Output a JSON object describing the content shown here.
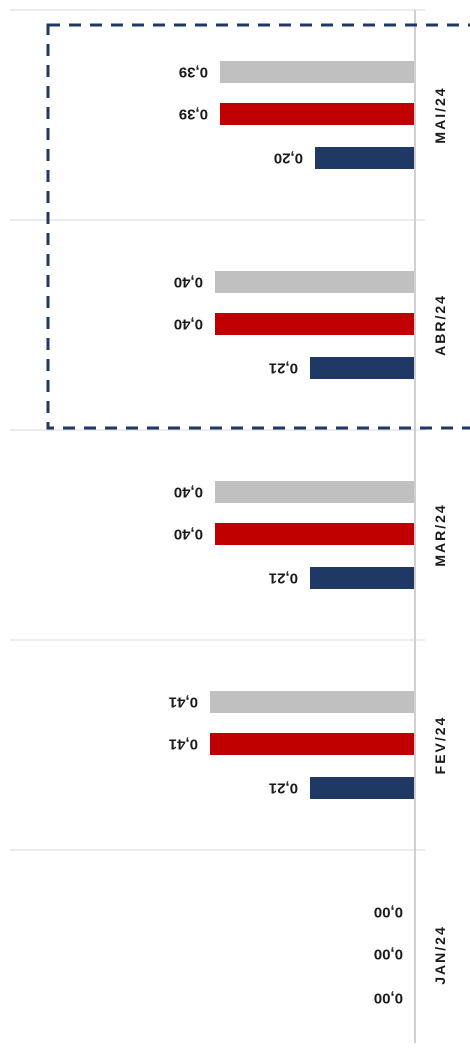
{
  "chart_data": {
    "type": "bar",
    "orientation": "horizontal",
    "rotated": "upside-down",
    "categories": [
      "MAI/24",
      "ABR/24",
      "MAR/24",
      "FEV/24",
      "JAN/24"
    ],
    "series": [
      {
        "color": "#c0c0c0",
        "values": [
          0.39,
          0.4,
          0.4,
          0.41,
          0.0
        ],
        "labels": [
          "0,39",
          "0,40",
          "0,40",
          "0,41",
          "0,00"
        ]
      },
      {
        "color": "#c00000",
        "values": [
          0.39,
          0.4,
          0.4,
          0.41,
          0.0
        ],
        "labels": [
          "0,39",
          "0,40",
          "0,40",
          "0,41",
          "0,00"
        ]
      },
      {
        "color": "#1f3864",
        "values": [
          0.2,
          0.21,
          0.21,
          0.21,
          0.0
        ],
        "labels": [
          "0,20",
          "0,21",
          "0,21",
          "0,21",
          "0,00"
        ]
      }
    ],
    "xlim": [
      0,
      0.8
    ],
    "highlight": {
      "categories": [
        "MAI/24",
        "ABR/24"
      ],
      "style": "dashed-box",
      "color": "#1f3864"
    },
    "grid": false,
    "legend": "none"
  }
}
